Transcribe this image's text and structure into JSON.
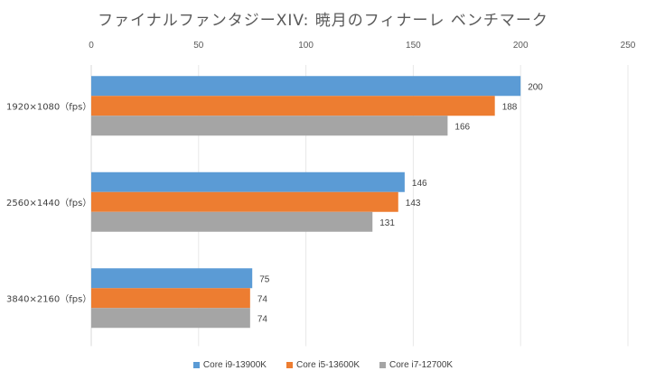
{
  "chart_data": {
    "type": "bar",
    "orientation": "horizontal",
    "title": "ファイナルファンタジーXIV: 暁月のフィナーレ ベンチマーク",
    "categories": [
      "1920×1080（fps）",
      "2560×1440（fps）",
      "3840×2160（fps）"
    ],
    "series": [
      {
        "name": "Core i9-13900K",
        "color": "#5B9BD5",
        "values": [
          200,
          146,
          75
        ]
      },
      {
        "name": "Core i5-13600K",
        "color": "#ED7D31",
        "values": [
          188,
          143,
          74
        ]
      },
      {
        "name": "Core i7-12700K",
        "color": "#A5A5A5",
        "values": [
          166,
          131,
          74
        ]
      }
    ],
    "xlim": [
      0,
      250
    ],
    "xticks": [
      0,
      50,
      100,
      150,
      200,
      250
    ],
    "xaxis_position": "top",
    "grid": true,
    "legend": "bottom",
    "data_labels": true
  }
}
